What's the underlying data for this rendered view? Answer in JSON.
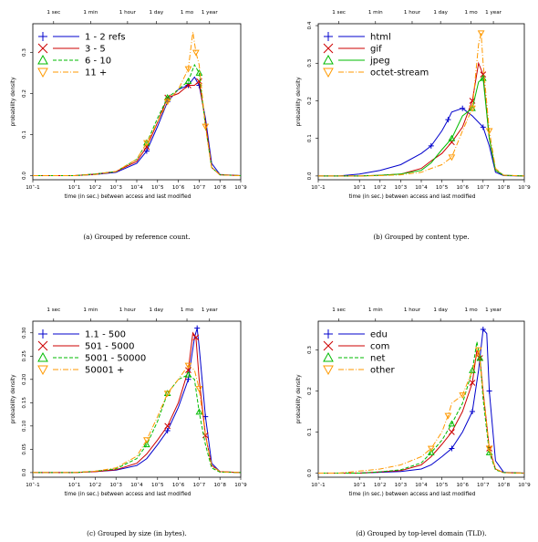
{
  "chart_data": [
    {
      "type": "line",
      "caption": "(a) Grouped by reference count.",
      "xlabel": "time (in sec.) between access and last modified",
      "ylabel": "probability density",
      "xscale": "log",
      "xlim": [
        0.1,
        1000000000
      ],
      "ylim": [
        -0.01,
        0.37
      ],
      "x_ticks": [
        "10^-1",
        "10^1",
        "10^2",
        "10^3",
        "10^4",
        "10^5",
        "10^6",
        "10^7",
        "10^8",
        "10^9"
      ],
      "y_ticks": [
        "0.0",
        "0.1",
        "0.2",
        "0.3"
      ],
      "top_axis_ticks": [
        {
          "label": "1 sec",
          "x": 1
        },
        {
          "label": "1 min",
          "x": 60
        },
        {
          "label": "1 hour",
          "x": 3600
        },
        {
          "label": "1 day",
          "x": 86400
        },
        {
          "label": "1 mo",
          "x": 2592000
        },
        {
          "label": "1 year",
          "x": 31536000
        }
      ],
      "series": [
        {
          "name": "1 - 2 refs",
          "color": "#0000cc",
          "marker": "+",
          "dash": "",
          "x": [
            0.1,
            1,
            10,
            100,
            1000,
            10000,
            30000,
            100000,
            300000,
            1000000,
            3000000,
            6000000,
            10000000,
            20000000,
            40000000,
            100000000,
            1000000000
          ],
          "y": [
            0.0,
            0.0,
            0.0,
            0.003,
            0.008,
            0.03,
            0.06,
            0.12,
            0.18,
            0.21,
            0.22,
            0.24,
            0.22,
            0.14,
            0.03,
            0.003,
            0.0
          ]
        },
        {
          "name": "3 - 5",
          "color": "#cc0000",
          "marker": "x",
          "dash": "",
          "x": [
            0.1,
            1,
            10,
            100,
            1000,
            10000,
            30000,
            100000,
            300000,
            1000000,
            3000000,
            6000000,
            10000000,
            20000000,
            40000000,
            100000000,
            1000000000
          ],
          "y": [
            0.0,
            0.0,
            0.0,
            0.004,
            0.01,
            0.035,
            0.07,
            0.13,
            0.19,
            0.2,
            0.22,
            0.22,
            0.23,
            0.13,
            0.02,
            0.002,
            0.0
          ]
        },
        {
          "name": "6 - 10",
          "color": "#00bb00",
          "marker": "triangle-up",
          "dash": "4,2",
          "x": [
            0.1,
            1,
            10,
            100,
            1000,
            10000,
            30000,
            100000,
            300000,
            1000000,
            3000000,
            6000000,
            10000000,
            20000000,
            40000000,
            100000000,
            1000000000
          ],
          "y": [
            0.0,
            0.0,
            0.0,
            0.004,
            0.01,
            0.04,
            0.08,
            0.14,
            0.19,
            0.21,
            0.23,
            0.27,
            0.25,
            0.12,
            0.02,
            0.002,
            0.0
          ]
        },
        {
          "name": "11 +",
          "color": "#ff9900",
          "marker": "triangle-down",
          "dash": "6,2,1,2",
          "x": [
            0.1,
            1,
            10,
            100,
            1000,
            10000,
            30000,
            100000,
            300000,
            1000000,
            3000000,
            5000000,
            7000000,
            10000000,
            20000000,
            40000000,
            100000000,
            1000000000
          ],
          "y": [
            0.0,
            0.0,
            0.0,
            0.003,
            0.01,
            0.04,
            0.08,
            0.13,
            0.18,
            0.21,
            0.26,
            0.35,
            0.3,
            0.27,
            0.12,
            0.02,
            0.002,
            0.0
          ]
        }
      ]
    },
    {
      "type": "line",
      "caption": "(b) Grouped by content type.",
      "xlabel": "time (in sec.) between access and last modified",
      "ylabel": "probability density",
      "xscale": "log",
      "xlim": [
        0.1,
        1000000000
      ],
      "ylim": [
        -0.01,
        0.405
      ],
      "x_ticks": [
        "10^-1",
        "10^1",
        "10^2",
        "10^3",
        "10^4",
        "10^5",
        "10^6",
        "10^7",
        "10^8",
        "10^9"
      ],
      "y_ticks": [
        "0.0",
        "0.1",
        "0.2",
        "0.3",
        "0.4"
      ],
      "top_axis_ticks": [
        {
          "label": "1 sec",
          "x": 1
        },
        {
          "label": "1 min",
          "x": 60
        },
        {
          "label": "1 hour",
          "x": 3600
        },
        {
          "label": "1 day",
          "x": 86400
        },
        {
          "label": "1 mo",
          "x": 2592000
        },
        {
          "label": "1 year",
          "x": 31536000
        }
      ],
      "series": [
        {
          "name": "html",
          "color": "#0000cc",
          "marker": "+",
          "dash": "",
          "x": [
            0.1,
            1,
            10,
            100,
            1000,
            10000,
            30000,
            100000,
            200000,
            300000,
            1000000,
            3000000,
            10000000,
            20000000,
            40000000,
            100000000,
            1000000000
          ],
          "y": [
            0.0,
            0.0,
            0.005,
            0.015,
            0.03,
            0.06,
            0.08,
            0.12,
            0.15,
            0.17,
            0.18,
            0.16,
            0.13,
            0.08,
            0.01,
            0.001,
            0.0
          ]
        },
        {
          "name": "gif",
          "color": "#cc0000",
          "marker": "x",
          "dash": "",
          "x": [
            0.1,
            1,
            10,
            100,
            1000,
            10000,
            30000,
            100000,
            300000,
            1000000,
            3000000,
            6000000,
            10000000,
            20000000,
            40000000,
            100000000,
            1000000000
          ],
          "y": [
            0.0,
            0.0,
            0.0,
            0.002,
            0.005,
            0.02,
            0.04,
            0.06,
            0.09,
            0.13,
            0.2,
            0.3,
            0.27,
            0.1,
            0.015,
            0.002,
            0.0
          ]
        },
        {
          "name": "jpeg",
          "color": "#00bb00",
          "marker": "triangle-up",
          "dash": "",
          "x": [
            0.1,
            1,
            10,
            100,
            1000,
            10000,
            30000,
            100000,
            300000,
            1000000,
            3000000,
            6000000,
            10000000,
            20000000,
            40000000,
            100000000,
            1000000000
          ],
          "y": [
            0.0,
            0.0,
            0.0,
            0.002,
            0.005,
            0.015,
            0.035,
            0.07,
            0.1,
            0.16,
            0.18,
            0.25,
            0.26,
            0.1,
            0.015,
            0.002,
            0.0
          ]
        },
        {
          "name": "octet-stream",
          "color": "#ff9900",
          "marker": "triangle-down",
          "dash": "6,2,1,2",
          "x": [
            0.1,
            1,
            10,
            100,
            1000,
            10000,
            30000,
            100000,
            300000,
            1000000,
            3000000,
            6000000,
            8000000,
            10000000,
            20000000,
            40000000,
            100000000,
            1000000000
          ],
          "y": [
            0.0,
            0.0,
            0.0,
            0.001,
            0.003,
            0.01,
            0.02,
            0.03,
            0.05,
            0.12,
            0.18,
            0.35,
            0.38,
            0.3,
            0.12,
            0.02,
            0.002,
            0.0
          ]
        }
      ]
    },
    {
      "type": "line",
      "caption": "(c) Grouped by size (in bytes).",
      "xlabel": "time (in sec.) between access and last modified",
      "ylabel": "probability density",
      "xscale": "log",
      "xlim": [
        0.1,
        1000000000
      ],
      "ylim": [
        -0.01,
        0.325
      ],
      "x_ticks": [
        "10^-1",
        "10^1",
        "10^2",
        "10^3",
        "10^4",
        "10^5",
        "10^6",
        "10^7",
        "10^8",
        "10^9"
      ],
      "y_ticks": [
        "0.0",
        "0.05",
        "0.10",
        "0.15",
        "0.20",
        "0.25",
        "0.30"
      ],
      "top_axis_ticks": [
        {
          "label": "1 sec",
          "x": 1
        },
        {
          "label": "1 min",
          "x": 60
        },
        {
          "label": "1 hour",
          "x": 3600
        },
        {
          "label": "1 day",
          "x": 86400
        },
        {
          "label": "1 mo",
          "x": 2592000
        },
        {
          "label": "1 year",
          "x": 31536000
        }
      ],
      "series": [
        {
          "name": "1.1 - 500",
          "color": "#0000cc",
          "marker": "+",
          "dash": "",
          "x": [
            0.1,
            1,
            10,
            100,
            1000,
            10000,
            30000,
            100000,
            300000,
            1000000,
            3000000,
            6000000,
            8000000,
            10000000,
            20000000,
            40000000,
            100000000,
            1000000000
          ],
          "y": [
            0.0,
            0.0,
            0.0,
            0.002,
            0.005,
            0.015,
            0.03,
            0.06,
            0.09,
            0.14,
            0.2,
            0.29,
            0.31,
            0.27,
            0.12,
            0.02,
            0.002,
            0.0
          ]
        },
        {
          "name": "501 - 5000",
          "color": "#cc0000",
          "marker": "x",
          "dash": "",
          "x": [
            0.1,
            1,
            10,
            100,
            1000,
            10000,
            30000,
            100000,
            300000,
            1000000,
            3000000,
            5000000,
            7000000,
            10000000,
            20000000,
            40000000,
            100000000,
            1000000000
          ],
          "y": [
            0.0,
            0.0,
            0.0,
            0.002,
            0.006,
            0.02,
            0.04,
            0.07,
            0.1,
            0.15,
            0.22,
            0.3,
            0.29,
            0.2,
            0.08,
            0.015,
            0.002,
            0.0
          ]
        },
        {
          "name": "5001 - 50000",
          "color": "#00bb00",
          "marker": "triangle-up",
          "dash": "4,2",
          "x": [
            0.1,
            1,
            10,
            100,
            1000,
            10000,
            30000,
            100000,
            300000,
            1000000,
            3000000,
            6000000,
            10000000,
            20000000,
            40000000,
            100000000,
            1000000000
          ],
          "y": [
            0.0,
            0.0,
            0.0,
            0.003,
            0.008,
            0.03,
            0.06,
            0.11,
            0.17,
            0.2,
            0.21,
            0.2,
            0.13,
            0.06,
            0.01,
            0.001,
            0.0
          ]
        },
        {
          "name": "50001 +",
          "color": "#ff9900",
          "marker": "triangle-down",
          "dash": "6,2,1,2",
          "x": [
            0.1,
            1,
            10,
            100,
            1000,
            10000,
            30000,
            100000,
            300000,
            1000000,
            3000000,
            6000000,
            10000000,
            20000000,
            40000000,
            100000000,
            1000000000
          ],
          "y": [
            0.0,
            0.0,
            0.0,
            0.003,
            0.01,
            0.035,
            0.07,
            0.12,
            0.17,
            0.2,
            0.23,
            0.22,
            0.18,
            0.08,
            0.015,
            0.002,
            0.0
          ]
        }
      ]
    },
    {
      "type": "line",
      "caption": "(d) Grouped by top-level domain (TLD).",
      "xlabel": "time (in sec.) between access and last modified",
      "ylabel": "probability density",
      "xscale": "log",
      "xlim": [
        0.1,
        1000000000
      ],
      "ylim": [
        -0.01,
        0.37
      ],
      "x_ticks": [
        "10^-1",
        "10^1",
        "10^2",
        "10^3",
        "10^4",
        "10^5",
        "10^6",
        "10^7",
        "10^8",
        "10^9"
      ],
      "y_ticks": [
        "0.0",
        "0.1",
        "0.2",
        "0.3"
      ],
      "top_axis_ticks": [
        {
          "label": "1 sec",
          "x": 1
        },
        {
          "label": "1 min",
          "x": 60
        },
        {
          "label": "1 hour",
          "x": 3600
        },
        {
          "label": "1 day",
          "x": 86400
        },
        {
          "label": "1 mo",
          "x": 2592000
        },
        {
          "label": "1 year",
          "x": 31536000
        }
      ],
      "series": [
        {
          "name": "edu",
          "color": "#0000cc",
          "marker": "+",
          "dash": "",
          "x": [
            0.1,
            1,
            10,
            100,
            1000,
            10000,
            30000,
            100000,
            300000,
            1000000,
            3000000,
            6000000,
            10000000,
            15000000,
            20000000,
            40000000,
            100000000,
            1000000000
          ],
          "y": [
            0.0,
            0.0,
            0.0,
            0.002,
            0.004,
            0.01,
            0.02,
            0.04,
            0.06,
            0.1,
            0.15,
            0.25,
            0.35,
            0.34,
            0.2,
            0.03,
            0.002,
            0.0
          ]
        },
        {
          "name": "com",
          "color": "#cc0000",
          "marker": "x",
          "dash": "",
          "x": [
            0.1,
            1,
            10,
            100,
            1000,
            10000,
            30000,
            100000,
            300000,
            1000000,
            3000000,
            5000000,
            7000000,
            10000000,
            20000000,
            40000000,
            100000000,
            1000000000
          ],
          "y": [
            0.0,
            0.0,
            0.0,
            0.003,
            0.006,
            0.02,
            0.04,
            0.07,
            0.1,
            0.15,
            0.22,
            0.3,
            0.28,
            0.2,
            0.06,
            0.01,
            0.001,
            0.0
          ]
        },
        {
          "name": "net",
          "color": "#00bb00",
          "marker": "triangle-up",
          "dash": "4,2",
          "x": [
            0.1,
            1,
            10,
            100,
            1000,
            10000,
            30000,
            100000,
            300000,
            1000000,
            3000000,
            5000000,
            7000000,
            10000000,
            20000000,
            40000000,
            100000000,
            1000000000
          ],
          "y": [
            0.0,
            0.0,
            0.0,
            0.003,
            0.008,
            0.025,
            0.05,
            0.08,
            0.12,
            0.17,
            0.25,
            0.32,
            0.28,
            0.18,
            0.05,
            0.008,
            0.001,
            0.0
          ]
        },
        {
          "name": "other",
          "color": "#ff9900",
          "marker": "triangle-down",
          "dash": "6,2,1,2",
          "x": [
            0.1,
            1,
            10,
            100,
            1000,
            10000,
            30000,
            100000,
            200000,
            300000,
            1000000,
            3000000,
            6000000,
            10000000,
            20000000,
            40000000,
            100000000,
            1000000000
          ],
          "y": [
            0.0,
            0.0,
            0.005,
            0.01,
            0.02,
            0.04,
            0.06,
            0.1,
            0.14,
            0.17,
            0.19,
            0.25,
            0.3,
            0.2,
            0.06,
            0.01,
            0.001,
            0.0
          ]
        }
      ]
    }
  ]
}
